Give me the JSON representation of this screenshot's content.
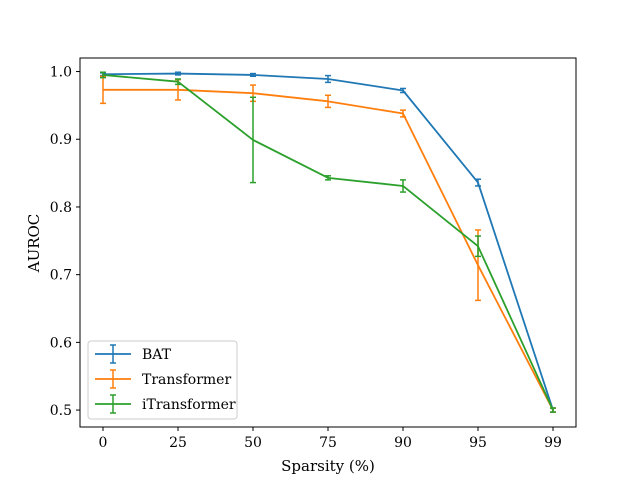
{
  "chart_data": {
    "type": "line",
    "xlabel": "Sparsity (%)",
    "ylabel": "AUROC",
    "categories": [
      "0",
      "25",
      "50",
      "75",
      "90",
      "95",
      "99"
    ],
    "ylim": [
      0.475,
      1.02
    ],
    "yticks": [
      0.5,
      0.6,
      0.7,
      0.8,
      0.9,
      1.0
    ],
    "ytick_labels": [
      "0.5",
      "0.6",
      "0.7",
      "0.8",
      "0.9",
      "1.0"
    ],
    "grid": false,
    "legend_position": "lower-left",
    "series": [
      {
        "name": "BAT",
        "color": "#1f77b4",
        "values": [
          0.996,
          0.997,
          0.995,
          0.989,
          0.972,
          0.836,
          0.5
        ],
        "errors": [
          0.002,
          0.002,
          0.002,
          0.005,
          0.003,
          0.005,
          0.003
        ]
      },
      {
        "name": "Transformer",
        "color": "#ff7f0e",
        "values": [
          0.973,
          0.973,
          0.968,
          0.956,
          0.938,
          0.714,
          0.5
        ],
        "errors": [
          0.02,
          0.015,
          0.012,
          0.009,
          0.005,
          0.052,
          0.003
        ]
      },
      {
        "name": "iTransformer",
        "color": "#2ca02c",
        "values": [
          0.995,
          0.985,
          0.899,
          0.843,
          0.831,
          0.742,
          0.5
        ],
        "errors": [
          0.004,
          0.004,
          0.063,
          0.003,
          0.009,
          0.015,
          0.003
        ]
      }
    ]
  }
}
